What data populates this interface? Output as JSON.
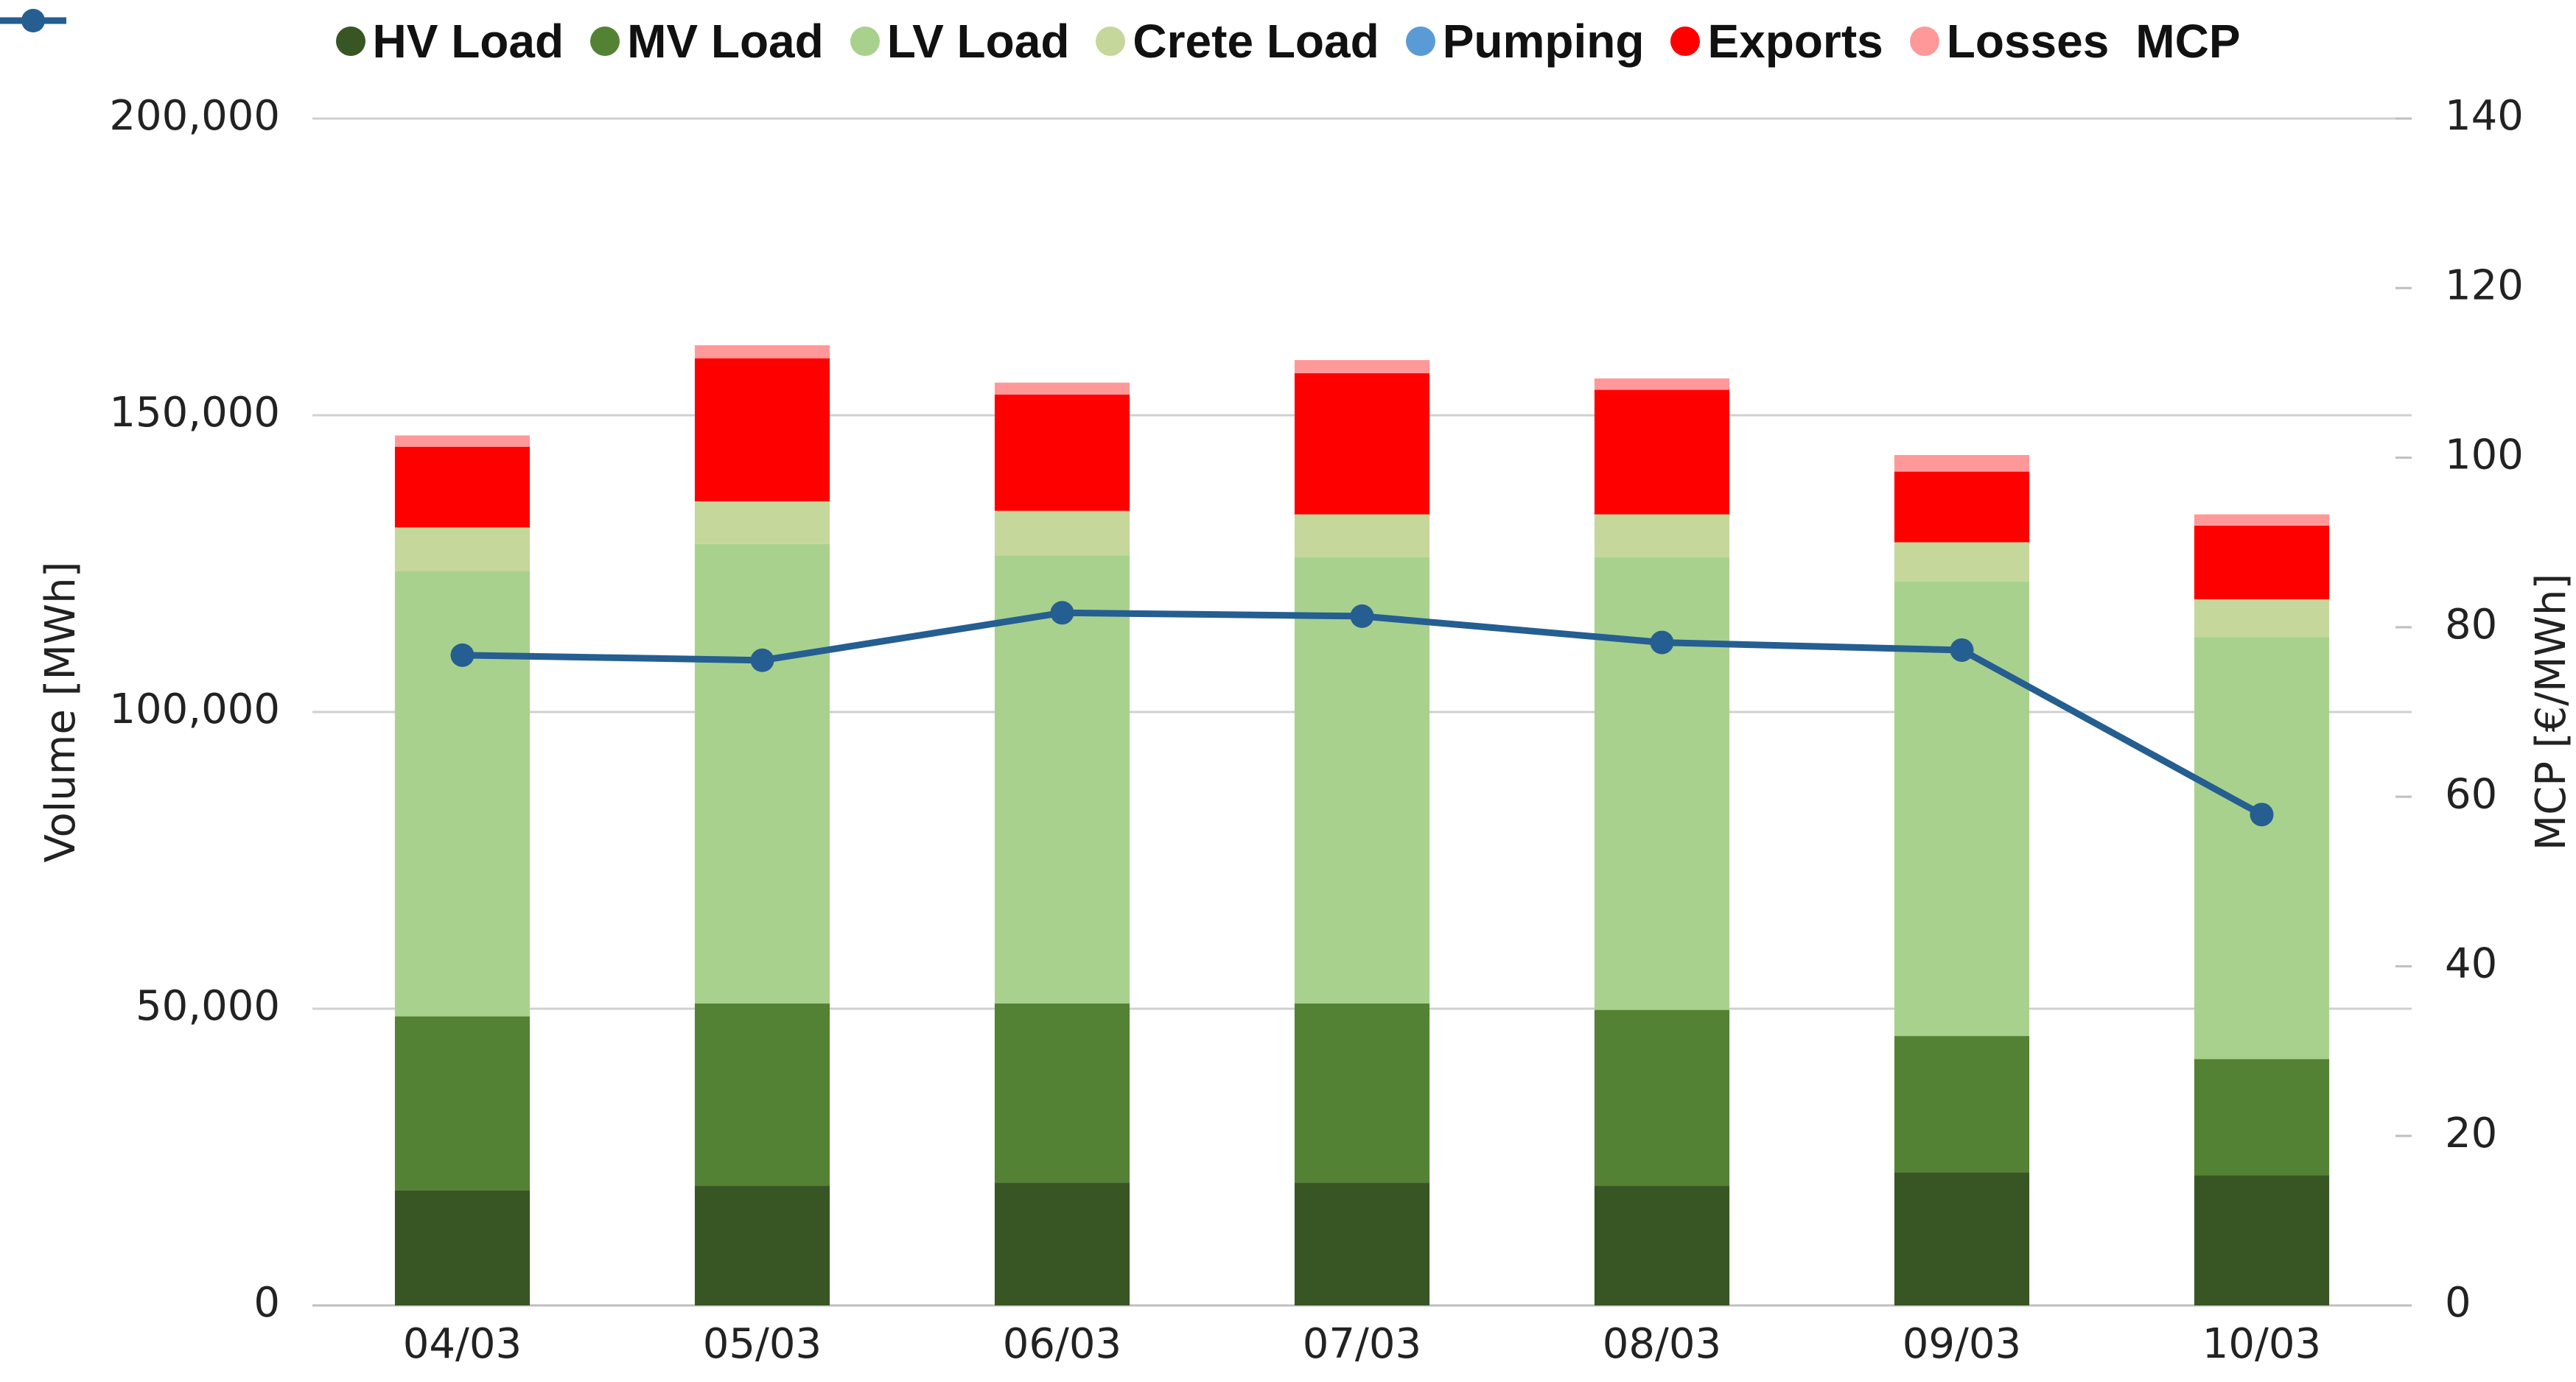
{
  "chart_data": {
    "type": "bar",
    "stacked": true,
    "categories": [
      "04/03",
      "05/03",
      "06/03",
      "07/03",
      "08/03",
      "09/03",
      "10/03"
    ],
    "series": [
      {
        "name": "HV Load",
        "color": "#375623",
        "values": [
          19400,
          20200,
          20700,
          20700,
          20200,
          22400,
          21900
        ]
      },
      {
        "name": "MV Load",
        "color": "#548235",
        "values": [
          29300,
          30700,
          30200,
          30200,
          29600,
          23000,
          19600
        ]
      },
      {
        "name": "LV Load",
        "color": "#a9d18e",
        "values": [
          75000,
          77400,
          75500,
          75200,
          76300,
          76600,
          71100
        ]
      },
      {
        "name": "Crete Load",
        "color": "#c5d79b",
        "values": [
          7400,
          7200,
          7500,
          7200,
          7200,
          6600,
          6400
        ]
      },
      {
        "name": "Pumping",
        "color": "#5b9bd5",
        "values": [
          0,
          0,
          0,
          0,
          0,
          0,
          0
        ]
      },
      {
        "name": "Exports",
        "color": "#ff0000",
        "values": [
          13600,
          24100,
          19600,
          23800,
          21000,
          11900,
          12400
        ]
      },
      {
        "name": "Losses",
        "color": "#ff9999",
        "values": [
          1900,
          2200,
          2000,
          2200,
          1900,
          2800,
          1900
        ]
      },
      {
        "name": "MCP",
        "color": "#255e91",
        "type": "line",
        "axis": "y2",
        "values": [
          76.7,
          76.1,
          81.7,
          81.3,
          78.2,
          77.3,
          57.9
        ]
      }
    ],
    "y_label": "Volume [MWh]",
    "y2_label": "MCP [€/MWh]",
    "ylim": [
      0,
      200000
    ],
    "yticks": [
      0,
      {
        "value": 50000,
        "label": "50,000"
      },
      {
        "value": 100000,
        "label": "100,000"
      },
      {
        "value": 150000,
        "label": "150,000"
      },
      {
        "value": 200000,
        "label": "200,000"
      }
    ],
    "y2lim": [
      0,
      140
    ],
    "y2ticks": [
      0,
      20,
      40,
      60,
      80,
      100,
      120,
      140
    ],
    "grid": true,
    "legend": "top"
  }
}
